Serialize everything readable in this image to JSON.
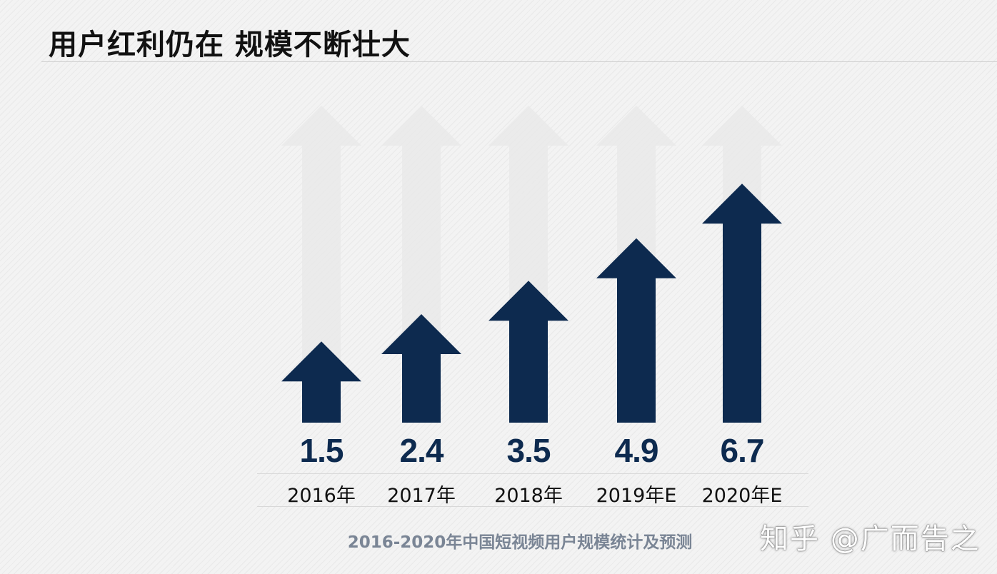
{
  "title": "用户红利仍在 规模不断壮大",
  "caption": "2016-2020年中国短视频用户规模统计及预测",
  "credit": "知乎 @广而告之",
  "colors": {
    "arrow": "#0d2a4f",
    "ghost_arrow": "#e9e9e9"
  },
  "chart_data": {
    "type": "bar",
    "categories": [
      "2016年",
      "2017年",
      "2018年",
      "2019年E",
      "2020年E"
    ],
    "values": [
      1.5,
      2.4,
      3.5,
      4.9,
      6.7
    ],
    "value_labels": [
      "1.5",
      "2.4",
      "3.5",
      "4.9",
      "6.7"
    ],
    "title": "2016-2020年中国短视频用户规模统计及预测",
    "xlabel": "",
    "ylabel": "",
    "ylim": [
      0,
      6.7
    ],
    "grid": false,
    "legend": "none",
    "mark_shape": "arrow"
  }
}
